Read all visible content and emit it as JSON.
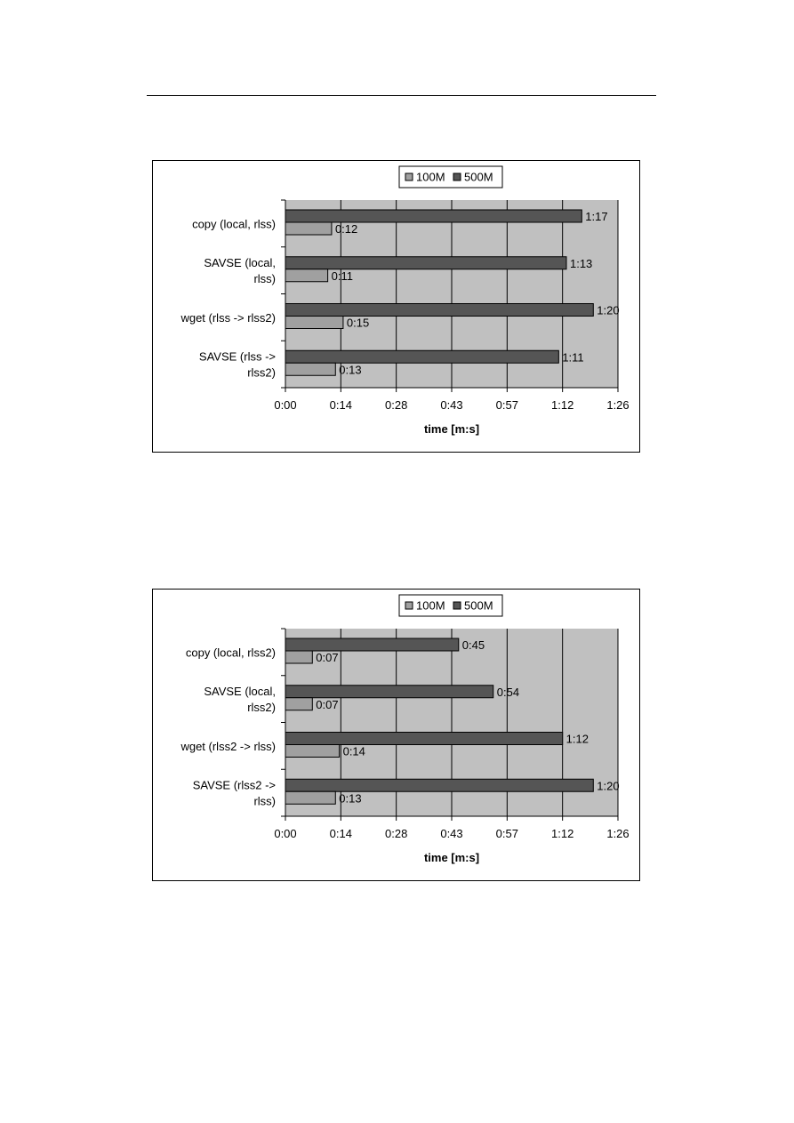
{
  "chart_data": [
    {
      "type": "bar",
      "orientation": "horizontal",
      "categories": [
        [
          "copy (local, rlss)"
        ],
        [
          "SAVSE (local,",
          "rlss)"
        ],
        [
          "wget (rlss -> rlss2)"
        ],
        [
          "SAVSE (rlss ->",
          "rlss2)"
        ]
      ],
      "series": [
        {
          "name": "100M",
          "values": [
            12,
            11,
            15,
            13
          ],
          "labels": [
            "0:12",
            "0:11",
            "0:15",
            "0:13"
          ],
          "color": "#a0a0a0"
        },
        {
          "name": "500M",
          "values": [
            77,
            73,
            80,
            71
          ],
          "labels": [
            "1:17",
            "1:13",
            "1:20",
            "1:11"
          ],
          "color": "#555555"
        }
      ],
      "xlabel": "time [m:s]",
      "xticks": [
        "0:00",
        "0:14",
        "0:28",
        "0:43",
        "0:57",
        "1:12",
        "1:26"
      ],
      "xlim": [
        0,
        86.4
      ],
      "grid": "vertical",
      "plot_background": "#c0c0c0",
      "legend_position": "top"
    },
    {
      "type": "bar",
      "orientation": "horizontal",
      "categories": [
        [
          "copy (local, rlss2)"
        ],
        [
          "SAVSE (local,",
          "rlss2)"
        ],
        [
          "wget (rlss2 -> rlss)"
        ],
        [
          "SAVSE (rlss2 ->",
          "rlss)"
        ]
      ],
      "series": [
        {
          "name": "100M",
          "values": [
            7,
            7,
            14,
            13
          ],
          "labels": [
            "0:07",
            "0:07",
            "0:14",
            "0:13"
          ],
          "color": "#a0a0a0"
        },
        {
          "name": "500M",
          "values": [
            45,
            54,
            72,
            80
          ],
          "labels": [
            "0:45",
            "0:54",
            "1:12",
            "1:20"
          ],
          "color": "#555555"
        }
      ],
      "xlabel": "time [m:s]",
      "xticks": [
        "0:00",
        "0:14",
        "0:28",
        "0:43",
        "0:57",
        "1:12",
        "1:26"
      ],
      "xlim": [
        0,
        86.4
      ],
      "grid": "vertical",
      "plot_background": "#c0c0c0",
      "legend_position": "top"
    }
  ]
}
